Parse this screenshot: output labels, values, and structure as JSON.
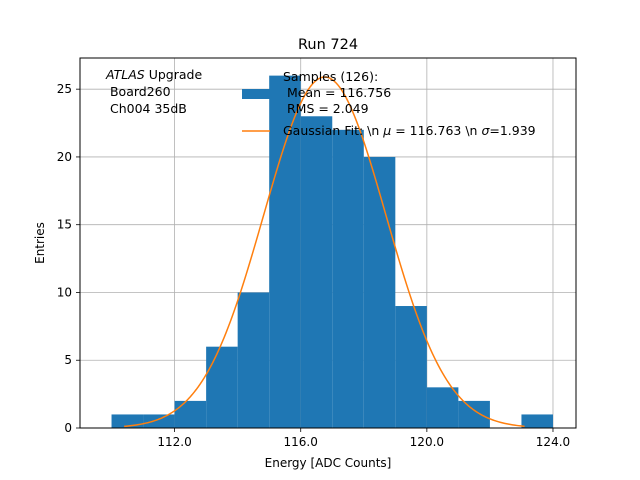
{
  "chart_data": {
    "type": "bar",
    "title": "Run 724",
    "xlabel": "Energy [ADC Counts]",
    "ylabel": "Entries",
    "xlim": [
      109.0,
      124.73
    ],
    "ylim": [
      0,
      27.3
    ],
    "grid": true,
    "legend_position": "top-right",
    "x_ticks": [
      112.0,
      116.0,
      120.0,
      124.0
    ],
    "x_tick_labels": [
      "112.0",
      "116.0",
      "120.0",
      "124.0"
    ],
    "y_ticks": [
      0,
      5,
      10,
      15,
      20,
      25
    ],
    "y_tick_labels": [
      "0",
      "5",
      "10",
      "15",
      "20",
      "25"
    ],
    "annotation": {
      "atlas": "ATLAS",
      "upgrade": " Upgrade",
      "board": " Board260",
      "channel": " Ch004 35dB"
    },
    "histogram": {
      "name": "Samples (126):\n Mean = 116.756\n RMS = 2.049",
      "legend_lines": [
        "Samples (126):",
        " Mean = 116.756",
        " RMS = 2.049"
      ],
      "color": "#1f77b4",
      "bin_edges": [
        110,
        111,
        112,
        113,
        114,
        115,
        116,
        117,
        118,
        119,
        120,
        121,
        122,
        123,
        124
      ],
      "counts": [
        1,
        1,
        2,
        6,
        10,
        26,
        23,
        22,
        20,
        9,
        3,
        2,
        0,
        1
      ]
    },
    "fit": {
      "name": "Gaussian Fit: \\n μ = 116.763 \\n σ=1.939",
      "legend_prefix": "Gaussian Fit: \\n ",
      "mu_symbol": "μ",
      "mu_text": " = 116.763 \\n ",
      "sigma_symbol": "σ",
      "sigma_text": "=1.939",
      "color": "#ff7f0e",
      "mu": 116.763,
      "sigma": 1.939,
      "amplitude": 25.9,
      "x_range": [
        110.4,
        123.1
      ]
    }
  }
}
